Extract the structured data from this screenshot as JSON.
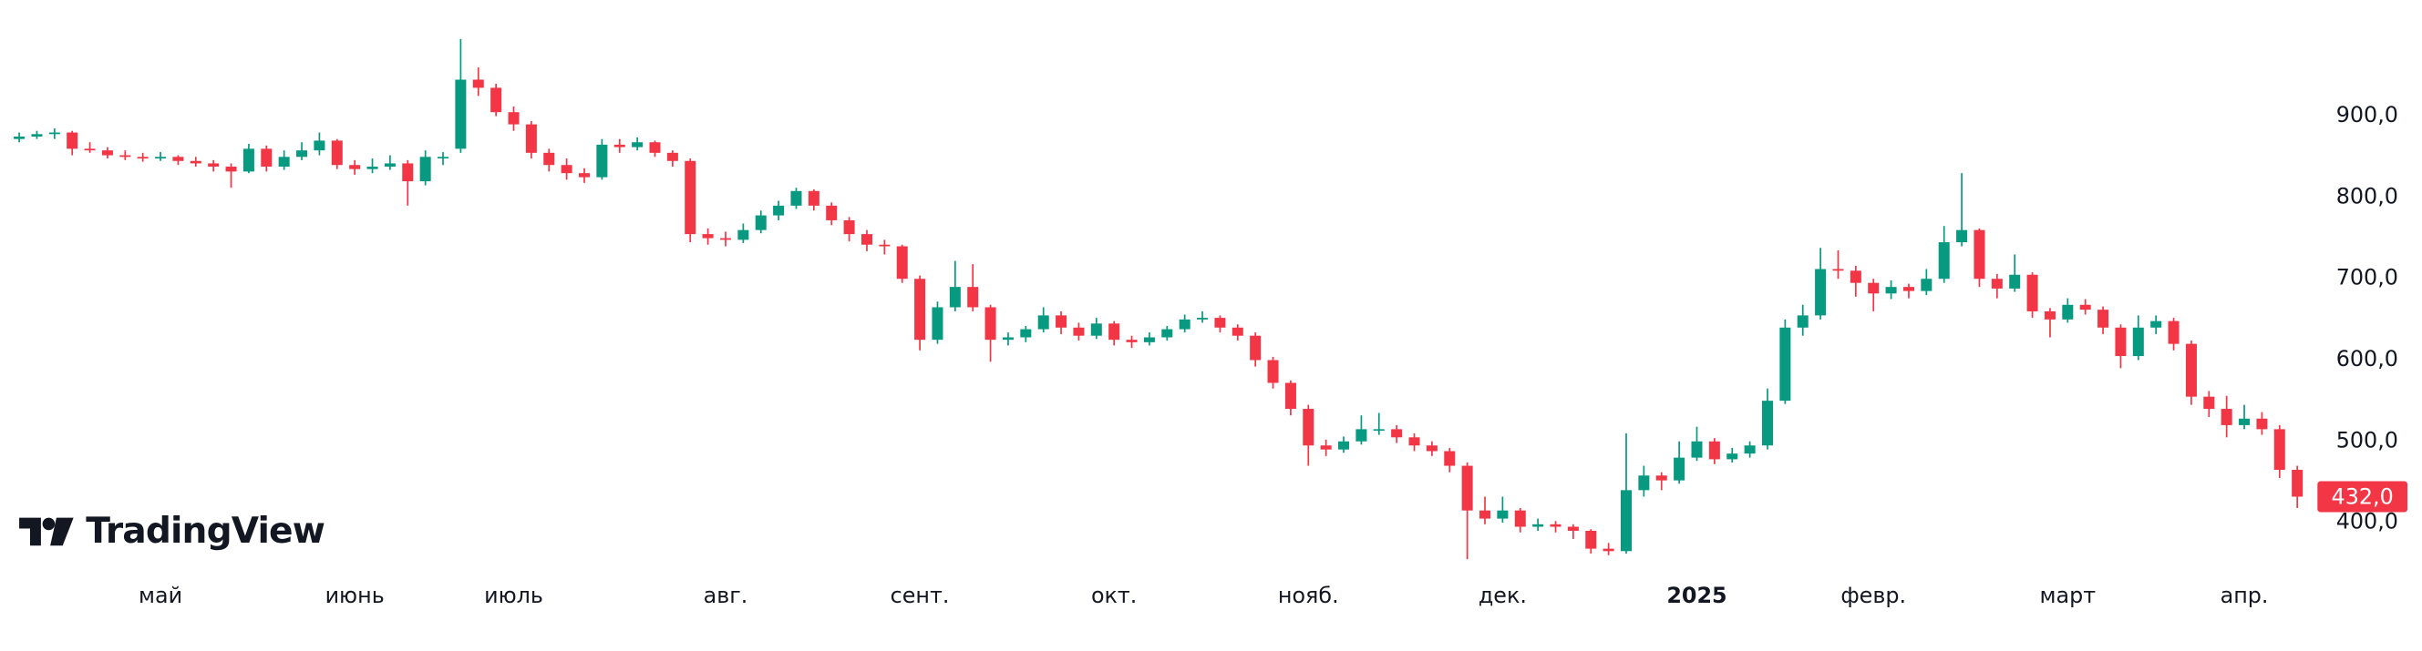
{
  "chart_data": {
    "type": "candlestick",
    "watermark": "TradingView",
    "up_color": "#089981",
    "down_color": "#f23645",
    "ylim": [
      347,
      1043
    ],
    "yticks": [
      {
        "value": 400,
        "label": "400,0"
      },
      {
        "value": 500,
        "label": "500,0"
      },
      {
        "value": 600,
        "label": "600,0"
      },
      {
        "value": 700,
        "label": "700,0"
      },
      {
        "value": 800,
        "label": "800,0"
      },
      {
        "value": 900,
        "label": "900,0"
      }
    ],
    "last_price": {
      "value": 432,
      "label": "432,0"
    },
    "categories": [
      null,
      null,
      null,
      null,
      null,
      null,
      null,
      null,
      "май",
      null,
      null,
      null,
      null,
      null,
      null,
      null,
      null,
      null,
      null,
      "июнь",
      null,
      null,
      null,
      null,
      null,
      null,
      null,
      null,
      "июль",
      null,
      null,
      null,
      null,
      null,
      null,
      null,
      null,
      null,
      null,
      null,
      "авг.",
      null,
      null,
      null,
      null,
      null,
      null,
      null,
      null,
      null,
      null,
      "сент.",
      null,
      null,
      null,
      null,
      null,
      null,
      null,
      null,
      null,
      null,
      "окт.",
      null,
      null,
      null,
      null,
      null,
      null,
      null,
      null,
      null,
      null,
      "нояб.",
      null,
      null,
      null,
      null,
      null,
      null,
      null,
      null,
      null,
      null,
      "дек.",
      null,
      null,
      null,
      null,
      null,
      null,
      null,
      null,
      null,
      null,
      "2025",
      null,
      null,
      null,
      null,
      null,
      null,
      null,
      null,
      null,
      "февр.",
      null,
      null,
      null,
      null,
      null,
      null,
      null,
      null,
      null,
      null,
      "март",
      null,
      null,
      null,
      null,
      null,
      null,
      null,
      null,
      null,
      "апр.",
      null,
      null,
      null
    ],
    "ohlc": [
      [
        872,
        880,
        868,
        875
      ],
      [
        875,
        882,
        872,
        878
      ],
      [
        878,
        885,
        872,
        880
      ],
      [
        880,
        882,
        852,
        860
      ],
      [
        860,
        868,
        855,
        858
      ],
      [
        858,
        862,
        848,
        852
      ],
      [
        852,
        858,
        846,
        850
      ],
      [
        850,
        855,
        844,
        848
      ],
      [
        848,
        856,
        845,
        850
      ],
      [
        850,
        852,
        840,
        845
      ],
      [
        845,
        850,
        838,
        842
      ],
      [
        842,
        846,
        832,
        838
      ],
      [
        838,
        842,
        812,
        832
      ],
      [
        832,
        866,
        830,
        860
      ],
      [
        860,
        864,
        832,
        838
      ],
      [
        838,
        858,
        834,
        850
      ],
      [
        850,
        868,
        846,
        858
      ],
      [
        858,
        880,
        852,
        870
      ],
      [
        870,
        872,
        835,
        840
      ],
      [
        840,
        846,
        828,
        835
      ],
      [
        835,
        848,
        830,
        838
      ],
      [
        838,
        852,
        834,
        842
      ],
      [
        842,
        846,
        790,
        820
      ],
      [
        820,
        858,
        815,
        850
      ],
      [
        850,
        856,
        840,
        850
      ],
      [
        860,
        995,
        855,
        945
      ],
      [
        945,
        960,
        925,
        935
      ],
      [
        935,
        940,
        900,
        905
      ],
      [
        905,
        912,
        882,
        890
      ],
      [
        890,
        894,
        848,
        855
      ],
      [
        855,
        860,
        832,
        840
      ],
      [
        840,
        848,
        822,
        830
      ],
      [
        830,
        836,
        818,
        825
      ],
      [
        825,
        872,
        822,
        865
      ],
      [
        865,
        872,
        855,
        862
      ],
      [
        862,
        874,
        858,
        868
      ],
      [
        868,
        870,
        850,
        855
      ],
      [
        855,
        858,
        838,
        845
      ],
      [
        845,
        848,
        745,
        755
      ],
      [
        755,
        762,
        742,
        750
      ],
      [
        750,
        758,
        740,
        748
      ],
      [
        748,
        768,
        744,
        760
      ],
      [
        760,
        784,
        756,
        778
      ],
      [
        778,
        796,
        772,
        790
      ],
      [
        790,
        812,
        786,
        808
      ],
      [
        808,
        810,
        784,
        790
      ],
      [
        790,
        794,
        766,
        772
      ],
      [
        772,
        776,
        746,
        755
      ],
      [
        755,
        760,
        734,
        742
      ],
      [
        742,
        748,
        730,
        740
      ],
      [
        740,
        742,
        695,
        700
      ],
      [
        700,
        704,
        612,
        625
      ],
      [
        625,
        672,
        620,
        665
      ],
      [
        665,
        722,
        660,
        690
      ],
      [
        690,
        718,
        660,
        665
      ],
      [
        665,
        668,
        598,
        625
      ],
      [
        625,
        634,
        618,
        628
      ],
      [
        628,
        642,
        622,
        638
      ],
      [
        638,
        665,
        634,
        655
      ],
      [
        655,
        660,
        632,
        640
      ],
      [
        640,
        646,
        624,
        630
      ],
      [
        630,
        652,
        626,
        645
      ],
      [
        645,
        648,
        618,
        625
      ],
      [
        625,
        630,
        615,
        622
      ],
      [
        622,
        634,
        618,
        628
      ],
      [
        628,
        642,
        624,
        638
      ],
      [
        638,
        656,
        634,
        650
      ],
      [
        650,
        660,
        646,
        652
      ],
      [
        652,
        655,
        634,
        640
      ],
      [
        640,
        644,
        624,
        630
      ],
      [
        630,
        634,
        592,
        600
      ],
      [
        600,
        604,
        565,
        572
      ],
      [
        572,
        575,
        532,
        540
      ],
      [
        540,
        545,
        470,
        495
      ],
      [
        495,
        502,
        482,
        490
      ],
      [
        490,
        506,
        486,
        500
      ],
      [
        500,
        532,
        496,
        515
      ],
      [
        515,
        535,
        508,
        515
      ],
      [
        515,
        520,
        498,
        505
      ],
      [
        505,
        510,
        488,
        495
      ],
      [
        495,
        500,
        482,
        488
      ],
      [
        488,
        492,
        462,
        470
      ],
      [
        470,
        474,
        355,
        415
      ],
      [
        415,
        432,
        398,
        405
      ],
      [
        405,
        432,
        400,
        415
      ],
      [
        415,
        418,
        388,
        395
      ],
      [
        395,
        405,
        390,
        398
      ],
      [
        398,
        402,
        388,
        395
      ],
      [
        395,
        398,
        380,
        390
      ],
      [
        390,
        392,
        362,
        368
      ],
      [
        368,
        375,
        360,
        365
      ],
      [
        365,
        510,
        362,
        440
      ],
      [
        440,
        470,
        432,
        458
      ],
      [
        458,
        462,
        440,
        452
      ],
      [
        452,
        500,
        448,
        480
      ],
      [
        480,
        518,
        476,
        500
      ],
      [
        500,
        504,
        472,
        478
      ],
      [
        478,
        492,
        474,
        485
      ],
      [
        485,
        500,
        480,
        495
      ],
      [
        495,
        565,
        490,
        550
      ],
      [
        550,
        650,
        546,
        640
      ],
      [
        640,
        668,
        630,
        655
      ],
      [
        655,
        738,
        650,
        712
      ],
      [
        712,
        735,
        700,
        710
      ],
      [
        710,
        716,
        678,
        695
      ],
      [
        695,
        700,
        660,
        682
      ],
      [
        682,
        698,
        675,
        690
      ],
      [
        690,
        694,
        676,
        685
      ],
      [
        685,
        712,
        680,
        700
      ],
      [
        700,
        765,
        695,
        745
      ],
      [
        745,
        830,
        740,
        760
      ],
      [
        760,
        762,
        690,
        700
      ],
      [
        700,
        706,
        676,
        688
      ],
      [
        688,
        730,
        684,
        705
      ],
      [
        705,
        708,
        652,
        660
      ],
      [
        660,
        664,
        628,
        650
      ],
      [
        650,
        676,
        646,
        668
      ],
      [
        668,
        675,
        656,
        662
      ],
      [
        662,
        666,
        632,
        640
      ],
      [
        640,
        644,
        590,
        605
      ],
      [
        605,
        655,
        600,
        640
      ],
      [
        640,
        655,
        632,
        648
      ],
      [
        648,
        652,
        612,
        620
      ],
      [
        620,
        624,
        545,
        555
      ],
      [
        555,
        562,
        530,
        540
      ],
      [
        540,
        556,
        505,
        520
      ],
      [
        520,
        545,
        515,
        528
      ],
      [
        528,
        536,
        508,
        515
      ],
      [
        515,
        520,
        455,
        465
      ],
      [
        465,
        470,
        418,
        432
      ]
    ]
  }
}
